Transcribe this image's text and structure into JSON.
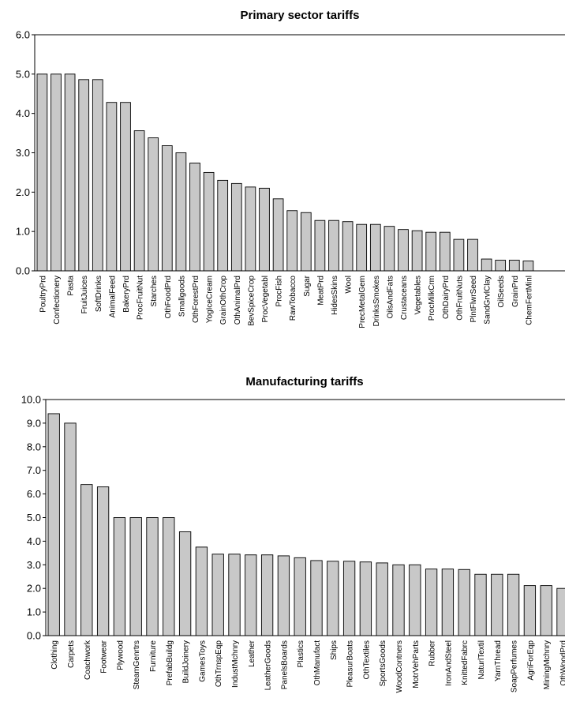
{
  "chart_data": [
    {
      "type": "bar",
      "title": "Primary sector tariffs",
      "xlabel": "",
      "ylabel": "",
      "ylim": [
        0,
        6
      ],
      "yticks": [
        "0.0",
        "1.0",
        "2.0",
        "3.0",
        "4.0",
        "5.0",
        "6.0"
      ],
      "grid": false,
      "bar_color": "#c8c8c8",
      "categories": [
        "PoultryPrd",
        "Confectionery",
        "Pasta",
        "FruitJuices",
        "SoftDrinks",
        "AnimalFeed",
        "BakeryPrd",
        "ProcFruitNut",
        "Starches",
        "OthFoodPrd",
        "Smallgoods",
        "OthForestPrd",
        "YogIceCream",
        "GrainOthCrop",
        "OthAnimalPrd",
        "BevSpiceCrop",
        "ProcVegetabl",
        "ProcFish",
        "RawTobacco",
        "Sugar",
        "MeatPrd",
        "HidesSkins",
        "Wool",
        "PrecMetalGem",
        "DrinksSmokes",
        "OilsAndFats",
        "Crustaceans",
        "Vegetables",
        "ProcMilkCrm",
        "OthDairyPrd",
        "OthFruitNuts",
        "PlntFlwrSeed",
        "SandGrvlClay",
        "OilSeeds",
        "GrainPrd",
        "ChemFertMinl"
      ],
      "values": [
        5.0,
        5.0,
        5.0,
        4.86,
        4.86,
        4.28,
        4.28,
        3.56,
        3.38,
        3.18,
        3.0,
        2.74,
        2.5,
        2.3,
        2.22,
        2.13,
        2.1,
        1.83,
        1.53,
        1.48,
        1.28,
        1.28,
        1.25,
        1.18,
        1.18,
        1.13,
        1.05,
        1.02,
        0.98,
        0.98,
        0.8,
        0.8,
        0.3,
        0.27,
        0.27,
        0.25
      ]
    },
    {
      "type": "bar",
      "title": "Manufacturing tariffs",
      "xlabel": "",
      "ylabel": "",
      "ylim": [
        0,
        10
      ],
      "yticks": [
        "0.0",
        "1.0",
        "2.0",
        "3.0",
        "4.0",
        "5.0",
        "6.0",
        "7.0",
        "8.0",
        "9.0",
        "10.0"
      ],
      "grid": false,
      "bar_color": "#c8c8c8",
      "categories": [
        "Clothing",
        "Carpets",
        "Coachwork",
        "Footwear",
        "Plywood",
        "SteamGenrtrs",
        "Furniture",
        "PrefabBuildg",
        "BuildJoinery",
        "GamesToys",
        "OthTrnspEqp",
        "IndustMchnry",
        "Leather",
        "LeatherGoods",
        "PanelsBoards",
        "Plastics",
        "OthManufact",
        "Ships",
        "PleasurBoats",
        "OthTextiles",
        "SportsGoods",
        "WoodContners",
        "MotrVehParts",
        "Rubber",
        "IronAndSteel",
        "KnittedFabrc",
        "NaturlTextil",
        "YarnThread",
        "SoapPerfumes",
        "AgriForEqp",
        "MiningMchnry",
        "OthWoodPrd"
      ],
      "values": [
        9.4,
        9.0,
        6.4,
        6.3,
        5.0,
        5.0,
        5.0,
        5.0,
        4.4,
        3.75,
        3.45,
        3.45,
        3.42,
        3.42,
        3.38,
        3.3,
        3.18,
        3.15,
        3.15,
        3.12,
        3.08,
        3.0,
        3.0,
        2.82,
        2.82,
        2.8,
        2.6,
        2.6,
        2.6,
        2.12,
        2.12,
        2.0
      ]
    }
  ]
}
